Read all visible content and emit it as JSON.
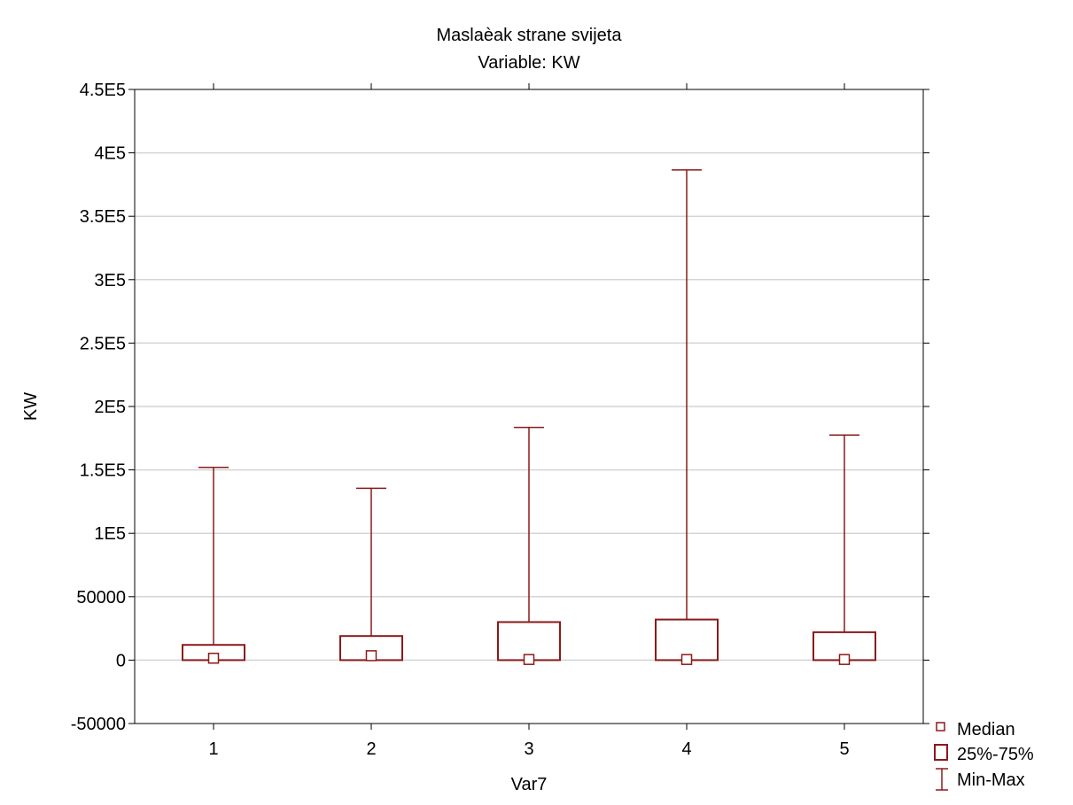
{
  "chart_data": {
    "type": "box",
    "title": "Maslaèak strane svijeta",
    "subtitle": "Variable: KW",
    "xlabel": "Var7",
    "ylabel": "KW",
    "categories": [
      "1",
      "2",
      "3",
      "4",
      "5"
    ],
    "ylim": [
      -50000,
      450000
    ],
    "yticks": [
      -50000,
      0,
      50000,
      100000,
      150000,
      200000,
      250000,
      300000,
      350000,
      400000,
      450000
    ],
    "ytick_labels": [
      "-50000",
      "0",
      "50000",
      "1E5",
      "1.5E5",
      "2E5",
      "2.5E5",
      "3E5",
      "3.5E5",
      "4E5",
      "4.5E5"
    ],
    "grid": true,
    "series": [
      {
        "category": "1",
        "min": 0,
        "q1": 0,
        "median": 1500,
        "q3": 12000,
        "max": 152000
      },
      {
        "category": "2",
        "min": 0,
        "q1": 0,
        "median": 3500,
        "q3": 19000,
        "max": 135500
      },
      {
        "category": "3",
        "min": 0,
        "q1": 0,
        "median": 500,
        "q3": 30000,
        "max": 183500
      },
      {
        "category": "4",
        "min": 0,
        "q1": 0,
        "median": 500,
        "q3": 32000,
        "max": 386500
      },
      {
        "category": "5",
        "min": 0,
        "q1": 0,
        "median": 500,
        "q3": 22000,
        "max": 177500
      }
    ],
    "legend": {
      "position": "bottom-right",
      "entries": [
        "Median",
        "25%-75%",
        "Min-Max"
      ]
    },
    "colors": {
      "box": "#8b1a1a",
      "grid": "#d4d4d4",
      "frame": "#000000"
    }
  }
}
